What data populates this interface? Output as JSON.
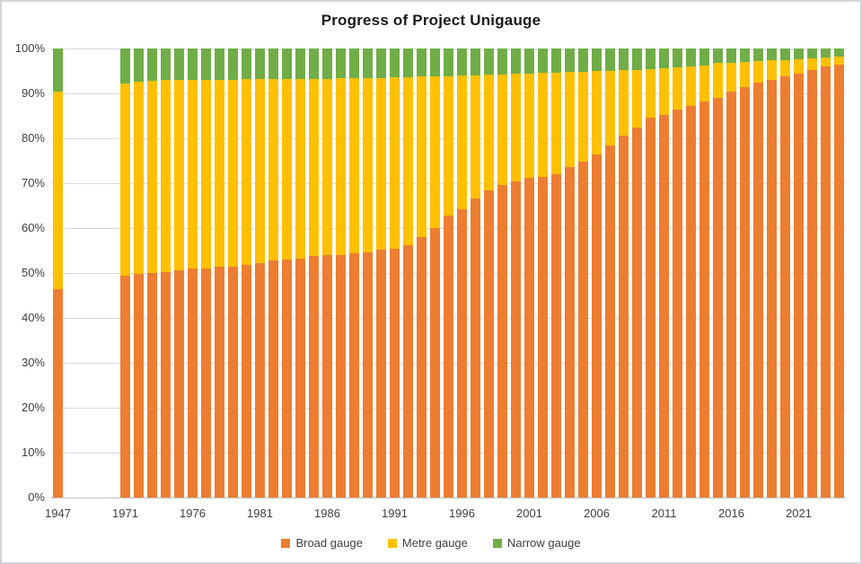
{
  "chart_data": {
    "type": "bar",
    "stacked": true,
    "percent_stacked": true,
    "title": "Progress of Project Unigauge",
    "ylim": [
      0,
      100
    ],
    "grid": "horizontal",
    "gridline_color": "#D9D9D9",
    "axis_line_color": "#BFBFBF",
    "text_color": "#404040",
    "title_color": "#1A1A1A",
    "legend_position": "bottom",
    "y_ticks": [
      "0%",
      "10%",
      "20%",
      "30%",
      "40%",
      "50%",
      "60%",
      "70%",
      "80%",
      "90%",
      "100%"
    ],
    "x_tick_labels": [
      "1947",
      "1971",
      "1976",
      "1981",
      "1986",
      "1991",
      "1996",
      "2001",
      "2006",
      "2011",
      "2016",
      "2021"
    ],
    "categories": [
      "1947",
      "",
      "",
      "",
      "",
      "1971",
      "1972",
      "1973",
      "1974",
      "1975",
      "1976",
      "1977",
      "1978",
      "1979",
      "1980",
      "1981",
      "1982",
      "1983",
      "1984",
      "1985",
      "1986",
      "1987",
      "1988",
      "1989",
      "1990",
      "1991",
      "1992",
      "1993",
      "1994",
      "1995",
      "1996",
      "1997",
      "1998",
      "1999",
      "2000",
      "2001",
      "2002",
      "2003",
      "2004",
      "2005",
      "2006",
      "2007",
      "2008",
      "2009",
      "2010",
      "2011",
      "2012",
      "2013",
      "2014",
      "2015",
      "2016",
      "2017",
      "2018",
      "2019",
      "2020",
      "2021",
      "2022",
      "2023",
      "2024"
    ],
    "series": [
      {
        "name": "Broad gauge",
        "color": "#ED7D31",
        "values": [
          46.5,
          null,
          null,
          null,
          null,
          49.4,
          49.8,
          50.1,
          50.3,
          50.6,
          51.0,
          51.1,
          51.4,
          51.5,
          51.8,
          52.3,
          52.8,
          53.0,
          53.2,
          53.8,
          54.0,
          54.1,
          54.4,
          54.6,
          55.2,
          55.5,
          56.2,
          58.0,
          60.0,
          62.8,
          64.3,
          66.7,
          68.5,
          69.7,
          70.4,
          71.3,
          71.4,
          72.0,
          73.6,
          74.8,
          76.4,
          78.5,
          80.6,
          82.4,
          84.6,
          85.3,
          86.4,
          87.2,
          88.2,
          89.0,
          90.5,
          91.4,
          92.5,
          93.0,
          93.8,
          94.5,
          95.2,
          96.0,
          96.5
        ]
      },
      {
        "name": "Metre gauge",
        "color": "#FFC000",
        "values": [
          43.9,
          null,
          null,
          null,
          null,
          42.8,
          42.9,
          42.8,
          42.7,
          42.5,
          42.0,
          41.9,
          41.7,
          41.6,
          41.4,
          40.9,
          40.4,
          40.2,
          40.1,
          39.5,
          39.3,
          39.3,
          39.0,
          38.9,
          38.3,
          38.1,
          37.5,
          35.8,
          33.9,
          31.1,
          29.7,
          27.4,
          25.7,
          24.6,
          24.0,
          23.2,
          23.2,
          22.7,
          21.2,
          20.1,
          18.6,
          16.6,
          14.6,
          12.9,
          10.9,
          10.3,
          9.4,
          8.8,
          8.0,
          7.8,
          6.4,
          5.7,
          4.8,
          4.4,
          3.7,
          3.1,
          2.6,
          2.0,
          1.7
        ]
      },
      {
        "name": "Narrow gauge",
        "color": "#70AD47",
        "values": [
          9.6,
          null,
          null,
          null,
          null,
          7.8,
          7.3,
          7.1,
          7.0,
          6.9,
          7.0,
          7.0,
          6.9,
          6.9,
          6.8,
          6.8,
          6.8,
          6.8,
          6.7,
          6.7,
          6.7,
          6.6,
          6.6,
          6.5,
          6.5,
          6.4,
          6.3,
          6.2,
          6.1,
          6.1,
          6.0,
          5.9,
          5.8,
          5.7,
          5.6,
          5.5,
          5.4,
          5.3,
          5.2,
          5.1,
          5.0,
          4.9,
          4.8,
          4.7,
          4.5,
          4.4,
          4.2,
          4.0,
          3.8,
          3.2,
          3.1,
          2.9,
          2.7,
          2.6,
          2.5,
          2.4,
          2.2,
          2.0,
          1.8
        ]
      }
    ]
  }
}
